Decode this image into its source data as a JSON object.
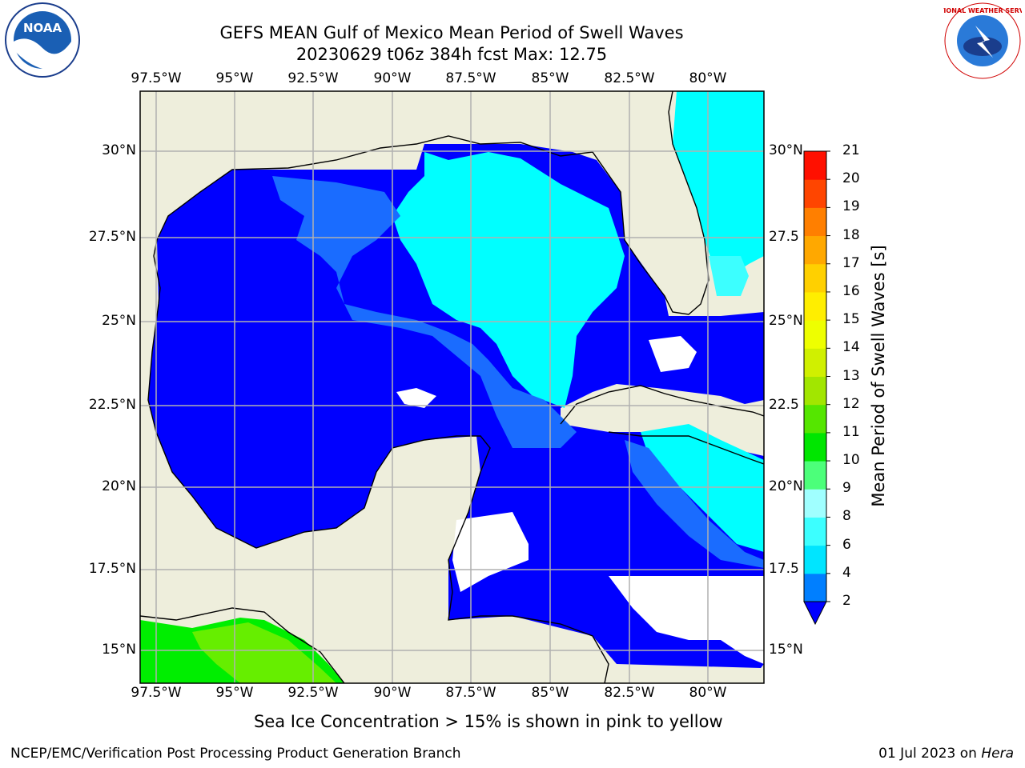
{
  "title": {
    "line1": "GEFS MEAN Gulf of Mexico Mean Period of Swell Waves",
    "line2": "20230629 t06z 384h fcst   Max: 12.75"
  },
  "logos": {
    "noaa_text": "NOAA",
    "nws_text": "NATIONAL WEATHER SERVICE"
  },
  "axes": {
    "lon_labels": [
      "97.5°W",
      "95°W",
      "92.5°W",
      "90°W",
      "87.5°W",
      "85°W",
      "82.5°W",
      "80°W"
    ],
    "lat_labels_left": [
      "30°N",
      "27.5°N",
      "25°N",
      "22.5°N",
      "20°N",
      "17.5°N",
      "15°N"
    ],
    "lat_labels_right": [
      "30°N",
      "27.5",
      "25°N",
      "22.5",
      "20°N",
      "17.5",
      "15°N"
    ]
  },
  "colorbar": {
    "label": "Mean Period of Swell Waves [s]",
    "ticks": [
      "2",
      "4",
      "6",
      "8",
      "9",
      "10",
      "11",
      "12",
      "13",
      "14",
      "15",
      "16",
      "17",
      "18",
      "19",
      "20",
      "21"
    ],
    "colors": [
      "#0000ff",
      "#007fff",
      "#00e5ff",
      "#3cffff",
      "#a0ffff",
      "#4cff7a",
      "#00e600",
      "#55e600",
      "#a2e600",
      "#d0f000",
      "#eeff00",
      "#ffee00",
      "#ffd000",
      "#ffa800",
      "#ff7f00",
      "#ff4500",
      "#ff1000",
      "#ff0000"
    ]
  },
  "map_colors": {
    "land": "#eeeedc",
    "deep_blue": "#0000ff",
    "mid_blue": "#1a6cff",
    "cyan": "#00ffff",
    "light_cyan": "#3cffff",
    "green": "#00ee00",
    "lime": "#66ee00",
    "grid": "#b0b0b0"
  },
  "caption": "Sea Ice Concentration > 15% is shown in pink to yellow",
  "footer": {
    "left": "NCEP/EMC/Verification Post Processing Product Generation Branch",
    "right_date": "01 Jul 2023 on ",
    "right_machine": "Hera"
  }
}
